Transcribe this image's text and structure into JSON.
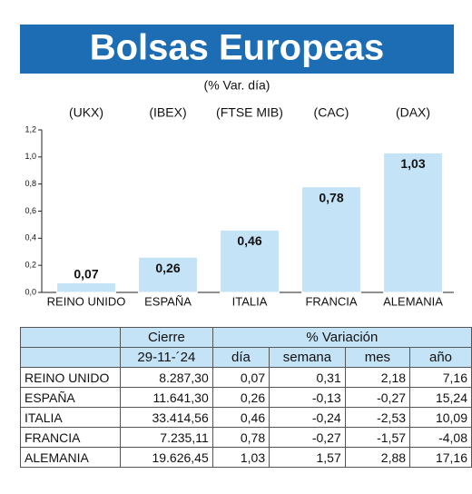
{
  "chart_data": {
    "type": "bar",
    "title": "Bolsas Europeas",
    "subtitle": "(% Var. día)",
    "tickers": [
      "(UKX)",
      "(IBEX)",
      "(FTSE MIB)",
      "(CAC)",
      "(DAX)"
    ],
    "categories": [
      "REINO UNIDO",
      "ESPAÑA",
      "ITALIA",
      "FRANCIA",
      "ALEMANIA"
    ],
    "values": [
      0.07,
      0.26,
      0.46,
      0.78,
      1.03
    ],
    "value_labels": [
      "0,07",
      "0,26",
      "0,46",
      "0,78",
      "1,03"
    ],
    "color": "#c5e3f6",
    "title_color": "#1c6db4",
    "ylim": [
      0,
      1.2
    ],
    "yticks": [
      {
        "value": 0,
        "label": "0,0"
      },
      {
        "value": 0.2,
        "label": "0,2"
      },
      {
        "value": 0.4,
        "label": "0,4"
      },
      {
        "value": 0.6,
        "label": "0,6"
      },
      {
        "value": 0.8,
        "label": "0,8"
      },
      {
        "value": 1.0,
        "label": "1,0"
      },
      {
        "value": 1.2,
        "label": "1,2"
      }
    ],
    "grid": false
  },
  "table": {
    "header": [
      "Cierre",
      "% Variación"
    ],
    "columns": [
      "29-11-´24",
      "día",
      "semana",
      "mes",
      "año"
    ],
    "rows": [
      [
        "REINO UNIDO",
        "8.287,30",
        "0,07",
        "0,31",
        "2,18",
        "7,16"
      ],
      [
        "ESPAÑA",
        "11.641,30",
        "0,26",
        "-0,13",
        "-0,27",
        "15,24"
      ],
      [
        "ITALIA",
        "33.414,56",
        "0,46",
        "-0,24",
        "-2,53",
        "10,09"
      ],
      [
        "FRANCIA",
        "7.235,11",
        "0,78",
        "-0,27",
        "-1,57",
        "-4,08"
      ],
      [
        "ALEMANIA",
        "19.626,45",
        "1,03",
        "1,57",
        "2,88",
        "17,16"
      ]
    ]
  }
}
